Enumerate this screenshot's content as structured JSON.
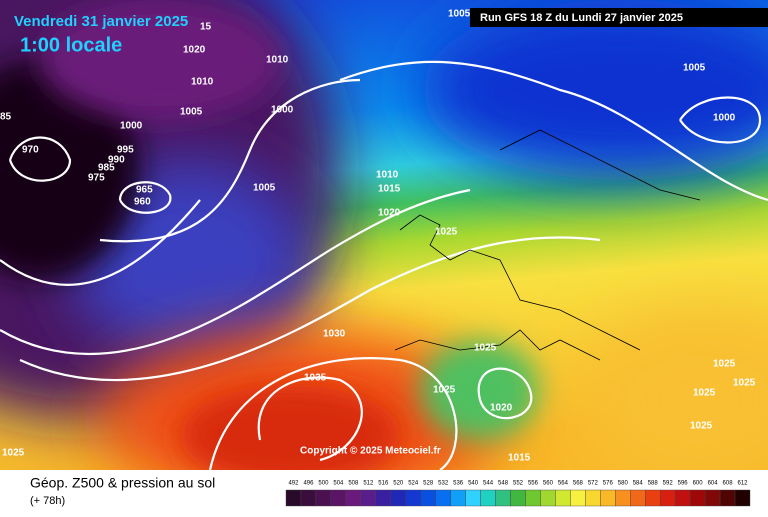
{
  "header": {
    "date": "Vendredi 31 janvier 2025",
    "time": "1:00 locale",
    "run": "Run GFS 18 Z du Lundi 27 janvier 2025"
  },
  "isobar_labels": [
    "1005",
    "15",
    "1020",
    "1010",
    "1010",
    "1005",
    "1000",
    "1000",
    "1005",
    "1000",
    "995",
    "990",
    "985",
    "975",
    "970",
    "965",
    "960",
    "1005",
    "1010",
    "1015",
    "1020",
    "1025",
    "1030",
    "1035",
    "1025",
    "1025",
    "1020",
    "1015",
    "1025",
    "1025",
    "1025",
    "1025",
    "1025",
    "85"
  ],
  "copyright": "Copyright © 2025 Meteociel.fr",
  "footer": {
    "title": "Géop. Z500 & pression au sol",
    "lead": "(+ 78h)"
  },
  "legend": {
    "labels": [
      "492",
      "496",
      "500",
      "504",
      "508",
      "512",
      "516",
      "520",
      "524",
      "528",
      "532",
      "536",
      "540",
      "544",
      "548",
      "552",
      "556",
      "560",
      "564",
      "568",
      "572",
      "576",
      "580",
      "584",
      "588",
      "592",
      "596",
      "600",
      "604",
      "608",
      "612"
    ],
    "colors": [
      "#2a0a2a",
      "#3b0d3d",
      "#4a1050",
      "#5b1466",
      "#6a1a7a",
      "#5a1e8c",
      "#3a20a0",
      "#2028b8",
      "#1438d0",
      "#0a50e0",
      "#0870f0",
      "#10a0f8",
      "#30d0ff",
      "#20d0c0",
      "#30c080",
      "#40b840",
      "#70c830",
      "#a0d830",
      "#d0e830",
      "#f8f040",
      "#f8d830",
      "#f8b828",
      "#f89020",
      "#f06818",
      "#e84010",
      "#d82010",
      "#c01010",
      "#a00808",
      "#800808",
      "#500404",
      "#200000"
    ]
  }
}
